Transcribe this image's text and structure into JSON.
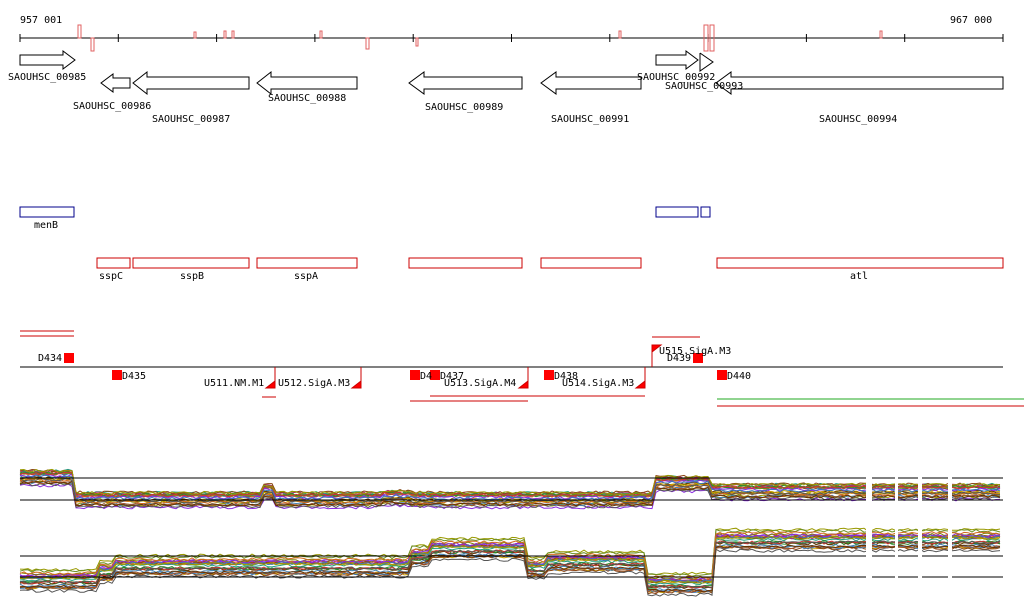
{
  "axis": {
    "start": "957 001",
    "end": "967 000"
  },
  "genes": [
    "SAOUHSC_00985",
    "SAOUHSC_00986",
    "SAOUHSC_00987",
    "SAOUHSC_00988",
    "SAOUHSC_00989",
    "SAOUHSC_00991",
    "SAOUHSC_00992",
    "SAOUHSC_00993",
    "SAOUHSC_00994"
  ],
  "blue_features": [
    "menB"
  ],
  "red_features": [
    "sspC",
    "sspB",
    "sspA",
    "atl"
  ],
  "segments": [
    "D434",
    "D435",
    "D436",
    "D437",
    "D438",
    "D439",
    "D440"
  ],
  "d436_visible": "D4",
  "promoters": [
    "U511.NM.M1",
    "U512.SigA.M3",
    "U513.SigA.M4",
    "U514.SigA.M3",
    "U515.SigA.M3"
  ],
  "colors": {
    "gene_track": "#cc0000",
    "blue_track": "#00008b",
    "marker": "#ff0000",
    "green_line": "#22aa22"
  }
}
